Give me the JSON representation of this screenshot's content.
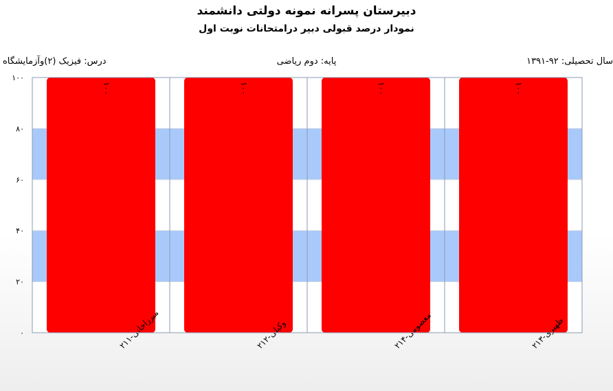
{
  "header": {
    "title": "دبیرستان پسرانه نمونه دولتی دانشمند",
    "subtitle": "نمودار درصد قبولی دبیر درامتحانات نوبت اول",
    "year": "سال تحصیلی: ۹۲-۱۳۹۱",
    "grade": "پایه: دوم ریاضی",
    "course": "درس: فیزیک (۲)وآزمایشگاه"
  },
  "colors": {
    "bar": "#ff0000",
    "band": "#a9c9fb",
    "grid": "#8a9ab0"
  },
  "chart_data": {
    "type": "bar",
    "categories": [
      "میرزاخانی-۲۱۱",
      "وکیلی-۲۱۲",
      "معصومی-۲۱۴",
      "ظهیری-۲۱۳"
    ],
    "values": [
      100,
      100,
      100,
      100
    ],
    "value_labels": [
      "۱۰۰",
      "۱۰۰",
      "۱۰۰",
      "۱۰۰"
    ],
    "ylim": [
      0,
      100
    ],
    "yticks": [
      0,
      20,
      40,
      60,
      80,
      100
    ],
    "ytick_labels": [
      "۰",
      "۲۰",
      "۴۰",
      "۶۰",
      "۸۰",
      "۱۰۰"
    ],
    "grid": true,
    "legend": "none"
  }
}
